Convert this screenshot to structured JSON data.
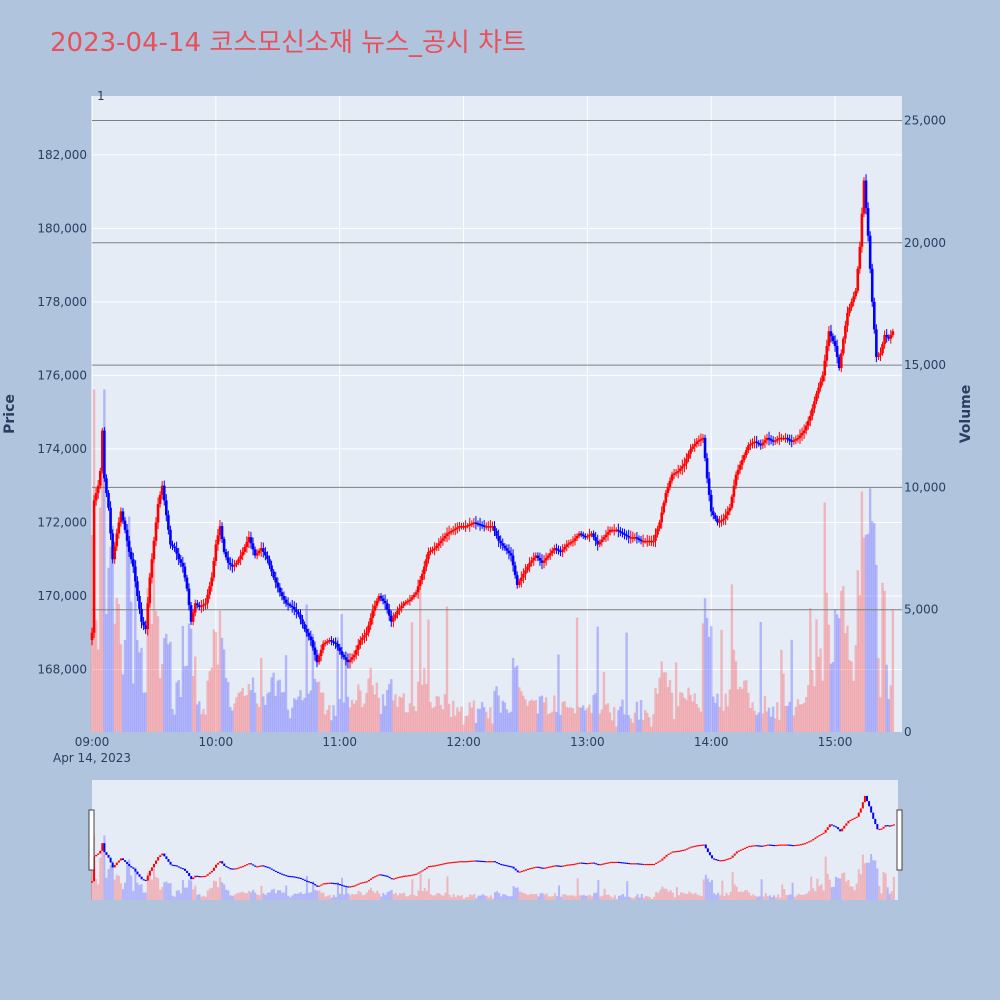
{
  "title": "2023-04-14 코스모신소재 뉴스_공시 차트",
  "colors": {
    "background": "#b0c4de",
    "plot_bg": "#e5ecf6",
    "title": "#e8505b",
    "up": "#ff0000",
    "down": "#0000ff",
    "hline": "#7f7f7f"
  },
  "chart_data": {
    "type": "candlestick",
    "xlabel_date": "Apr 14, 2023",
    "ylabel": "Price",
    "y2label": "Volume",
    "y_ticks": [
      "168,000",
      "170,000",
      "172,000",
      "174,000",
      "176,000",
      "178,000",
      "180,000",
      "182,000"
    ],
    "y2_ticks": [
      "0",
      "5,000",
      "10,000",
      "15,000",
      "20,000",
      "25,000"
    ],
    "x_ticks": [
      "09:00",
      "10:00",
      "11:00",
      "12:00",
      "13:00",
      "14:00",
      "15:00"
    ],
    "ylim": [
      166300,
      183600
    ],
    "y2lim": [
      0,
      26000
    ],
    "volume_hlines": [
      5000,
      10000,
      15000,
      20000,
      25000
    ],
    "annotation": "1",
    "price_keypoints": [
      [
        "09:00",
        169000
      ],
      [
        "09:01",
        172600
      ],
      [
        "09:02",
        172800
      ],
      [
        "09:03",
        173000
      ],
      [
        "09:04",
        173400
      ],
      [
        "09:05",
        174500
      ],
      [
        "09:06",
        173200
      ],
      [
        "09:08",
        172400
      ],
      [
        "09:10",
        171000
      ],
      [
        "09:12",
        171700
      ],
      [
        "09:14",
        172300
      ],
      [
        "09:16",
        171800
      ],
      [
        "09:18",
        171200
      ],
      [
        "09:20",
        170800
      ],
      [
        "09:22",
        170000
      ],
      [
        "09:24",
        169300
      ],
      [
        "09:26",
        169100
      ],
      [
        "09:28",
        170500
      ],
      [
        "09:30",
        171500
      ],
      [
        "09:32",
        172500
      ],
      [
        "09:34",
        173000
      ],
      [
        "09:36",
        172200
      ],
      [
        "09:38",
        171400
      ],
      [
        "09:40",
        171300
      ],
      [
        "09:42",
        171000
      ],
      [
        "09:44",
        170800
      ],
      [
        "09:46",
        170200
      ],
      [
        "09:48",
        169300
      ],
      [
        "09:50",
        169800
      ],
      [
        "09:52",
        169700
      ],
      [
        "09:55",
        169800
      ],
      [
        "09:58",
        170500
      ],
      [
        "10:00",
        171400
      ],
      [
        "10:02",
        171900
      ],
      [
        "10:04",
        171200
      ],
      [
        "10:06",
        170900
      ],
      [
        "10:08",
        170800
      ],
      [
        "10:10",
        170900
      ],
      [
        "10:13",
        171200
      ],
      [
        "10:16",
        171600
      ],
      [
        "10:19",
        171100
      ],
      [
        "10:22",
        171300
      ],
      [
        "10:25",
        171000
      ],
      [
        "10:28",
        170500
      ],
      [
        "10:31",
        170100
      ],
      [
        "10:34",
        169800
      ],
      [
        "10:37",
        169700
      ],
      [
        "10:40",
        169500
      ],
      [
        "10:43",
        169100
      ],
      [
        "10:46",
        168800
      ],
      [
        "10:49",
        168200
      ],
      [
        "10:52",
        168700
      ],
      [
        "10:55",
        168800
      ],
      [
        "10:58",
        168700
      ],
      [
        "11:01",
        168400
      ],
      [
        "11:04",
        168200
      ],
      [
        "11:07",
        168400
      ],
      [
        "11:10",
        168800
      ],
      [
        "11:13",
        169000
      ],
      [
        "11:16",
        169600
      ],
      [
        "11:19",
        170000
      ],
      [
        "11:22",
        169800
      ],
      [
        "11:25",
        169300
      ],
      [
        "11:28",
        169600
      ],
      [
        "11:31",
        169800
      ],
      [
        "11:34",
        169900
      ],
      [
        "11:37",
        170100
      ],
      [
        "11:40",
        170600
      ],
      [
        "11:43",
        171200
      ],
      [
        "11:46",
        171300
      ],
      [
        "11:49",
        171500
      ],
      [
        "11:52",
        171700
      ],
      [
        "11:55",
        171800
      ],
      [
        "11:58",
        171900
      ],
      [
        "12:01",
        171900
      ],
      [
        "12:05",
        172000
      ],
      [
        "12:10",
        171900
      ],
      [
        "12:14",
        171900
      ],
      [
        "12:17",
        171500
      ],
      [
        "12:20",
        171300
      ],
      [
        "12:23",
        171100
      ],
      [
        "12:26",
        170300
      ],
      [
        "12:29",
        170600
      ],
      [
        "12:32",
        170900
      ],
      [
        "12:35",
        171100
      ],
      [
        "12:38",
        170900
      ],
      [
        "12:41",
        171100
      ],
      [
        "12:44",
        171300
      ],
      [
        "12:47",
        171200
      ],
      [
        "12:50",
        171400
      ],
      [
        "12:53",
        171500
      ],
      [
        "12:56",
        171700
      ],
      [
        "12:59",
        171600
      ],
      [
        "13:02",
        171700
      ],
      [
        "13:05",
        171400
      ],
      [
        "13:08",
        171600
      ],
      [
        "13:11",
        171800
      ],
      [
        "13:14",
        171800
      ],
      [
        "13:17",
        171700
      ],
      [
        "13:20",
        171600
      ],
      [
        "13:23",
        171600
      ],
      [
        "13:26",
        171500
      ],
      [
        "13:29",
        171500
      ],
      [
        "13:32",
        171500
      ],
      [
        "13:35",
        172000
      ],
      [
        "13:38",
        172800
      ],
      [
        "13:41",
        173300
      ],
      [
        "13:44",
        173400
      ],
      [
        "13:47",
        173600
      ],
      [
        "13:50",
        174000
      ],
      [
        "13:53",
        174200
      ],
      [
        "13:56",
        174300
      ],
      [
        "13:58",
        173200
      ],
      [
        "14:00",
        172300
      ],
      [
        "14:03",
        172000
      ],
      [
        "14:06",
        172100
      ],
      [
        "14:09",
        172400
      ],
      [
        "14:12",
        173300
      ],
      [
        "14:15",
        173700
      ],
      [
        "14:18",
        174100
      ],
      [
        "14:21",
        174200
      ],
      [
        "14:24",
        174100
      ],
      [
        "14:27",
        174300
      ],
      [
        "14:30",
        174200
      ],
      [
        "14:33",
        174300
      ],
      [
        "14:36",
        174300
      ],
      [
        "14:39",
        174200
      ],
      [
        "14:42",
        174300
      ],
      [
        "14:45",
        174500
      ],
      [
        "14:48",
        174900
      ],
      [
        "14:51",
        175500
      ],
      [
        "14:54",
        176000
      ],
      [
        "14:57",
        177200
      ],
      [
        "15:00",
        176800
      ],
      [
        "15:02",
        176200
      ],
      [
        "15:04",
        177000
      ],
      [
        "15:06",
        177700
      ],
      [
        "15:08",
        178000
      ],
      [
        "15:10",
        178300
      ],
      [
        "15:12",
        179500
      ],
      [
        "15:14",
        181300
      ],
      [
        "15:16",
        179800
      ],
      [
        "15:18",
        178000
      ],
      [
        "15:20",
        176500
      ],
      [
        "15:22",
        176600
      ],
      [
        "15:24",
        177100
      ],
      [
        "15:26",
        177000
      ],
      [
        "15:28",
        177200
      ]
    ]
  }
}
